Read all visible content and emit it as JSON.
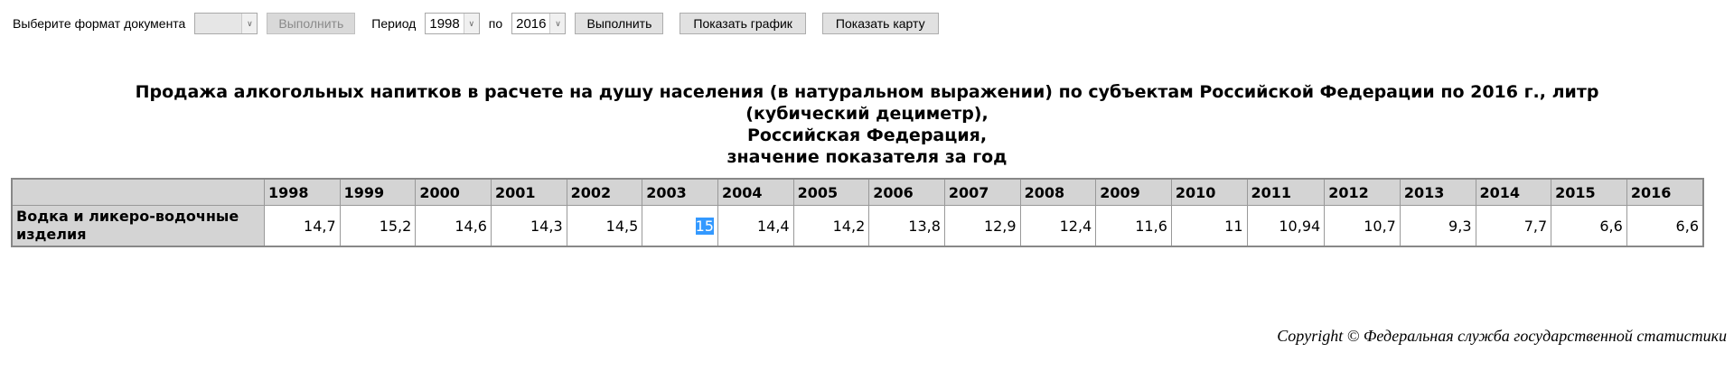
{
  "toolbar": {
    "format_label": "Выберите формат документа",
    "format_value": "",
    "execute_disabled": "Выполнить",
    "period_label": "Период",
    "period_from": "1998",
    "to_label": "по",
    "period_to": "2016",
    "execute": "Выполнить",
    "show_chart": "Показать график",
    "show_map": "Показать карту"
  },
  "title": {
    "line1": "Продажа алкогольных напитков в расчете на душу населения (в натуральном выражении) по субъектам Российской Федерации по 2016 г., литр",
    "line2": "(кубический дециметр),",
    "line3": "Российская Федерация,",
    "line4": "значение показателя за год"
  },
  "table": {
    "years": [
      "1998",
      "1999",
      "2000",
      "2001",
      "2002",
      "2003",
      "2004",
      "2005",
      "2006",
      "2007",
      "2008",
      "2009",
      "2010",
      "2011",
      "2012",
      "2013",
      "2014",
      "2015",
      "2016"
    ],
    "rows": [
      {
        "label": "Водка и ликеро-водочные изделия",
        "values": [
          "14,7",
          "15,2",
          "14,6",
          "14,3",
          "14,5",
          "15",
          "14,4",
          "14,2",
          "13,8",
          "12,9",
          "12,4",
          "11,6",
          "11",
          "10,94",
          "10,7",
          "9,3",
          "7,7",
          "6,6",
          "6,6"
        ],
        "highlighted_index": 5
      }
    ]
  },
  "footer": {
    "copyright": "Copyright © Федеральная служба государственной статистики"
  }
}
